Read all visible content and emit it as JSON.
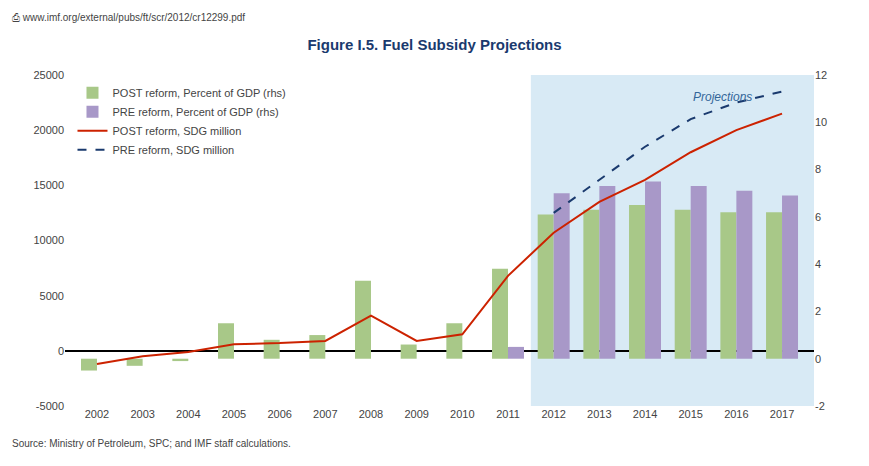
{
  "chart_data": {
    "type": "bar",
    "title": "Figure I.5. Fuel Subsidy Projections",
    "source": "Source: Ministry of Petroleum, SPC; and IMF staff calculations.",
    "url": "⎙ www.imf.org/external/pubs/ft/scr/2012/cr12299.pdf",
    "categories": [
      "2002",
      "2003",
      "2004",
      "2005",
      "2006",
      "2007",
      "2008",
      "2009",
      "2010",
      "2011",
      "2012",
      "2013",
      "2014",
      "2015",
      "2016",
      "2017"
    ],
    "series": [
      {
        "name": "POST reform, Percent of GDP (rhs)",
        "type": "bar",
        "axis": "y2",
        "color": "#a8c888",
        "values": [
          -0.5,
          -0.3,
          -0.1,
          1.5,
          0.8,
          1.0,
          3.3,
          0.6,
          1.5,
          3.8,
          6.1,
          6.3,
          6.5,
          6.3,
          6.2,
          6.2
        ]
      },
      {
        "name": "PRE reform, Percent of GDP (rhs)",
        "type": "bar",
        "axis": "y2",
        "color": "#a898c8",
        "values": [
          null,
          null,
          null,
          null,
          null,
          null,
          null,
          null,
          null,
          0.5,
          7.0,
          7.3,
          7.5,
          7.3,
          7.1,
          6.9
        ]
      },
      {
        "name": "POST reform, SDG million",
        "type": "line",
        "color": "#cc2200",
        "line_style": "solid",
        "values": [
          -1200,
          -500,
          -100,
          600,
          700,
          900,
          3200,
          900,
          1500,
          6800,
          10700,
          13500,
          15500,
          18000,
          20000,
          21500
        ]
      },
      {
        "name": "PRE reform, SDG million",
        "type": "line",
        "color": "#1a3a6e",
        "line_style": "dashed",
        "values": [
          null,
          null,
          null,
          null,
          null,
          null,
          null,
          null,
          null,
          null,
          12500,
          15500,
          18500,
          21000,
          22500,
          23500
        ]
      }
    ],
    "ylim": [
      -5000,
      25000
    ],
    "yticks": [
      -5000,
      0,
      5000,
      10000,
      15000,
      20000,
      25000
    ],
    "y2lim": [
      -2,
      12
    ],
    "y2ticks": [
      -2,
      0,
      2,
      4,
      6,
      8,
      10,
      12
    ],
    "grid": false,
    "legend": "upper left",
    "annotations": [
      {
        "text": "Projections",
        "x": "2015",
        "y": 23000,
        "color": "#336699"
      }
    ],
    "spans": [
      {
        "from": "2012",
        "color": "#d8eaf5"
      }
    ]
  }
}
